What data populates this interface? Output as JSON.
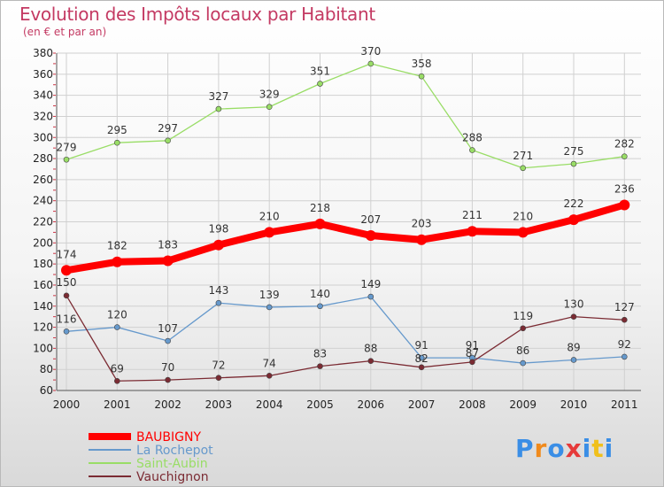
{
  "chart_data": {
    "type": "line",
    "title": "Evolution des Impôts locaux par Habitant",
    "subtitle": "(en € et par an)",
    "x": [
      "2000",
      "2001",
      "2002",
      "2003",
      "2004",
      "2005",
      "2006",
      "2007",
      "2008",
      "2009",
      "2010",
      "2011"
    ],
    "ylim": [
      60,
      380
    ],
    "yticks": [
      60,
      80,
      100,
      120,
      140,
      160,
      180,
      200,
      220,
      240,
      260,
      280,
      300,
      320,
      340,
      360,
      380
    ],
    "grid": true,
    "legend_position": "bottom-left",
    "series": [
      {
        "name": "BAUBIGNY",
        "color": "#ff0000",
        "values": [
          174,
          182,
          183,
          198,
          210,
          218,
          207,
          203,
          211,
          210,
          222,
          236
        ]
      },
      {
        "name": "La Rochepot",
        "color": "#6699cc",
        "values": [
          116,
          120,
          107,
          143,
          139,
          140,
          149,
          91,
          91,
          86,
          89,
          92
        ]
      },
      {
        "name": "Saint-Aubin",
        "color": "#99dd66",
        "values": [
          279,
          295,
          297,
          327,
          329,
          351,
          370,
          358,
          288,
          271,
          275,
          282
        ]
      },
      {
        "name": "Vauchignon",
        "color": "#7b2b33",
        "values": [
          150,
          69,
          70,
          72,
          74,
          83,
          88,
          82,
          87,
          119,
          130,
          127
        ]
      }
    ]
  },
  "brand": {
    "letters": [
      "P",
      "r",
      "o",
      "x",
      "i",
      "t",
      "i"
    ],
    "colors": [
      "#3a8ee6",
      "#f08a1c",
      "#3a8ee6",
      "#e63a3a",
      "#3a8ee6",
      "#f0c01c",
      "#3a8ee6"
    ]
  }
}
